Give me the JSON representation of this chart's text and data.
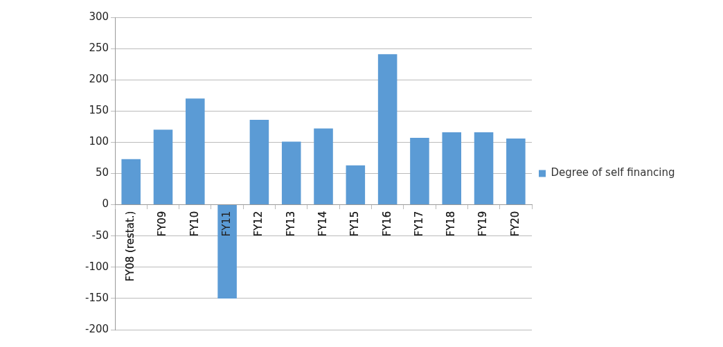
{
  "chart_data": {
    "type": "bar",
    "categories": [
      "FY08 (restat.)",
      "FY09",
      "FY10",
      "FY11",
      "FY12",
      "FY13",
      "FY14",
      "FY15",
      "FY16",
      "FY17",
      "FY18",
      "FY19",
      "FY20"
    ],
    "series": [
      {
        "name": "Degree of self financing",
        "color": "#5b9bd5",
        "values": [
          73,
          120,
          170,
          -150,
          136,
          101,
          122,
          63,
          241,
          107,
          116,
          116,
          106
        ]
      }
    ],
    "ylim": [
      -200,
      300
    ],
    "yticks": [
      -200,
      -150,
      -100,
      -50,
      0,
      50,
      100,
      150,
      200,
      250,
      300
    ],
    "grid": "y",
    "legend": "right"
  }
}
